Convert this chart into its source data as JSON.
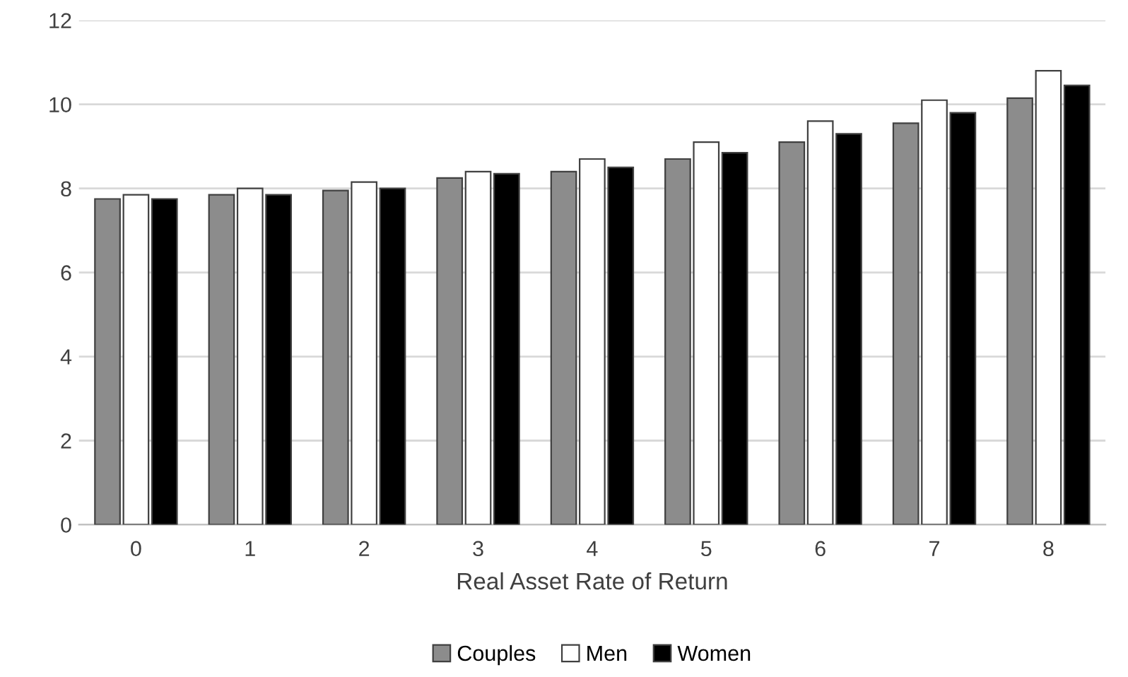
{
  "chart_data": {
    "type": "bar",
    "xlabel": "Real Asset Rate of Return",
    "categories": [
      "0",
      "1",
      "2",
      "3",
      "4",
      "5",
      "6",
      "7",
      "8"
    ],
    "series": [
      {
        "name": "Couples",
        "color": "#8c8c8c",
        "values": [
          7.75,
          7.85,
          7.95,
          8.25,
          8.4,
          8.7,
          9.1,
          9.55,
          10.15
        ]
      },
      {
        "name": "Men",
        "color": "#ffffff",
        "values": [
          7.85,
          8.0,
          8.15,
          8.4,
          8.7,
          9.1,
          9.6,
          10.1,
          10.8
        ]
      },
      {
        "name": "Women",
        "color": "#000000",
        "values": [
          7.75,
          7.85,
          8.0,
          8.35,
          8.5,
          8.85,
          9.3,
          9.8,
          10.45
        ]
      }
    ],
    "ylim": [
      0,
      12
    ],
    "yticks": [
      0,
      2,
      4,
      6,
      8,
      10,
      12
    ],
    "grid": "y",
    "legend": "bottom"
  }
}
